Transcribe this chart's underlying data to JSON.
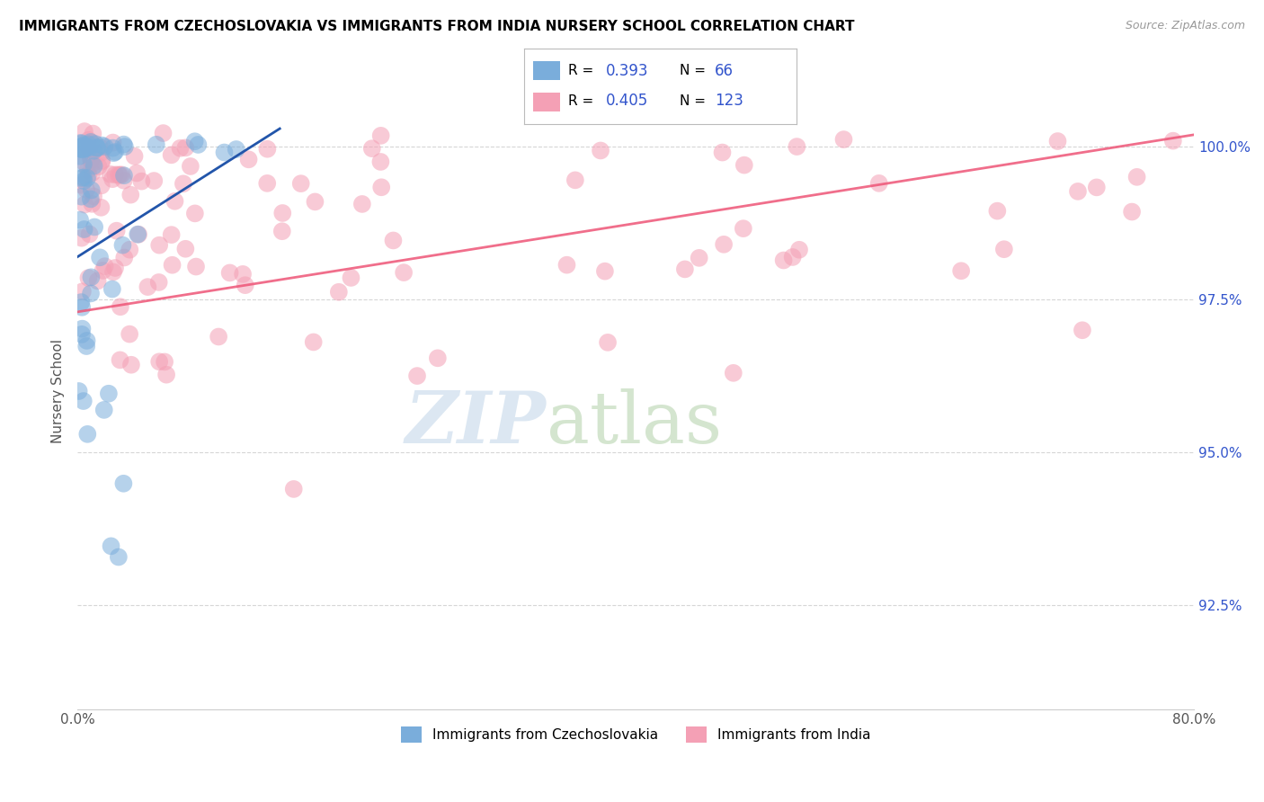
{
  "title": "IMMIGRANTS FROM CZECHOSLOVAKIA VS IMMIGRANTS FROM INDIA NURSERY SCHOOL CORRELATION CHART",
  "source": "Source: ZipAtlas.com",
  "ylabel": "Nursery School",
  "ytick_labels": [
    "100.0%",
    "97.5%",
    "95.0%",
    "92.5%"
  ],
  "ytick_values": [
    1.0,
    0.975,
    0.95,
    0.925
  ],
  "xmin": 0.0,
  "xmax": 0.8,
  "ymin": 0.908,
  "ymax": 1.012,
  "blue_color": "#7AADDB",
  "pink_color": "#F4A0B5",
  "blue_line_color": "#2255AA",
  "pink_line_color": "#EE5577",
  "watermark_zip": "ZIP",
  "watermark_atlas": "atlas",
  "watermark_color_zip": "#C8D8EA",
  "watermark_color_atlas": "#C8D8C0",
  "grid_color": "#CCCCCC",
  "bottom_spine_color": "#CCCCCC",
  "title_fontsize": 11,
  "source_fontsize": 9,
  "tick_fontsize": 11,
  "ylabel_fontsize": 11,
  "legend_R_blue": "0.393",
  "legend_N_blue": "66",
  "legend_R_pink": "0.405",
  "legend_N_pink": "123",
  "legend_text_color": "#3355CC",
  "legend_label_color": "black"
}
